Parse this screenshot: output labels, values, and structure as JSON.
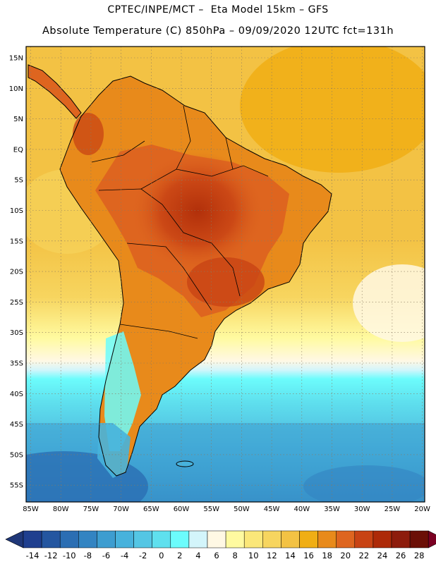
{
  "header": {
    "line1": "CPTEC/INPE/MCT –  Eta Model 15km – GFS",
    "line2": "Absolute Temperature (C) 850hPa – 09/09/2020 12UTC fct=131h"
  },
  "map": {
    "lat_labels": [
      "15N",
      "10N",
      "5N",
      "EQ",
      "5S",
      "10S",
      "15S",
      "20S",
      "25S",
      "30S",
      "35S",
      "40S",
      "45S",
      "50S",
      "55S"
    ],
    "lon_labels": [
      "85W",
      "80W",
      "75W",
      "70W",
      "65W",
      "60W",
      "55W",
      "50W",
      "45W",
      "40W",
      "35W",
      "30W",
      "25W",
      "20W"
    ],
    "gridlines": true
  },
  "colorbar": {
    "labels": [
      "-14",
      "-12",
      "-10",
      "-8",
      "-6",
      "-4",
      "-2",
      "0",
      "2",
      "4",
      "6",
      "8",
      "10",
      "12",
      "14",
      "16",
      "18",
      "20",
      "22",
      "24",
      "26",
      "28"
    ],
    "colors": [
      "#1f3f8f",
      "#2456a0",
      "#2b6eb3",
      "#3384c2",
      "#3d9dd0",
      "#47b2dc",
      "#54c6e4",
      "#5fe0ee",
      "#6cfcfc",
      "#d3f5fb",
      "#fff8e4",
      "#fffaa0",
      "#fbe779",
      "#f7d55f",
      "#f3c244",
      "#f0ae14",
      "#e88a1b",
      "#de651f",
      "#c84314",
      "#ad2a08",
      "#8d1c0c",
      "#6b0f06"
    ],
    "under_color": "#1f3778",
    "over_color": "#7a0022"
  }
}
